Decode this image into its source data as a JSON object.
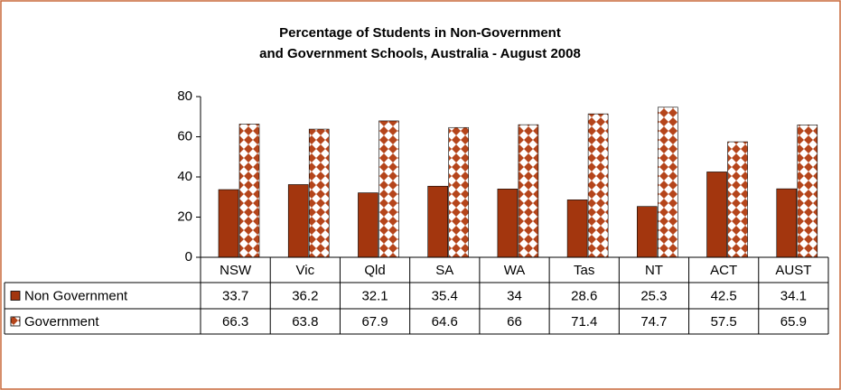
{
  "chart_data": {
    "type": "bar",
    "title": [
      "Percentage of Students in Non-Government",
      "and Government Schools, Australia - August 2008"
    ],
    "categories": [
      "NSW",
      "Vic",
      "Qld",
      "SA",
      "WA",
      "Tas",
      "NT",
      "ACT",
      "AUST"
    ],
    "series": [
      {
        "name": "Non Government",
        "color": "#a3360e",
        "values": [
          33.7,
          36.2,
          32.1,
          35.4,
          34,
          28.6,
          25.3,
          42.5,
          34.1
        ]
      },
      {
        "name": "Government",
        "color": "#b5451b",
        "values": [
          66.3,
          63.8,
          67.9,
          64.6,
          66,
          71.4,
          74.7,
          57.5,
          65.9
        ]
      }
    ],
    "ylim": [
      0,
      80
    ],
    "yticks": [
      0,
      20,
      40,
      60,
      80
    ]
  }
}
